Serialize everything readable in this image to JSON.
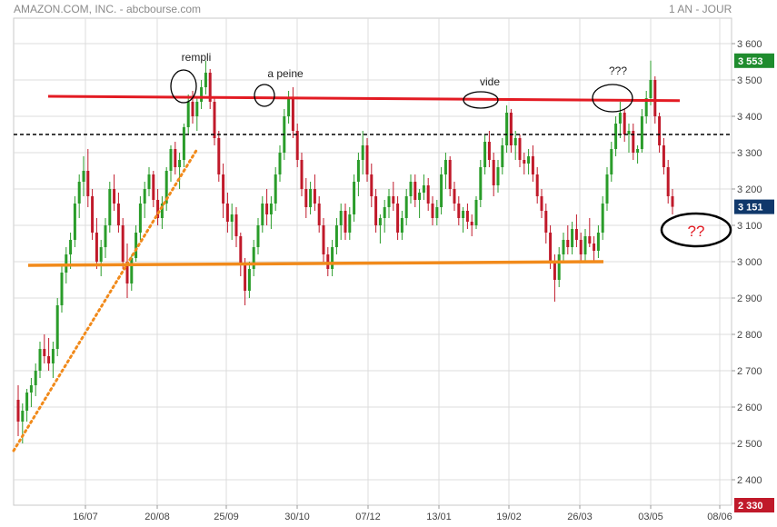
{
  "header": {
    "title": "AMAZON.COM, INC. - abcbourse.com",
    "period": "1 AN - JOUR"
  },
  "colors": {
    "up": "#2a9c2a",
    "down": "#c0192a",
    "resistance": "#e31b23",
    "support": "#f18a1b",
    "dashed": "#000000",
    "price_badge_green": "#1f8c2e",
    "price_badge_red": "#c0192a",
    "grid": "#dcdcdc"
  },
  "chart_data": {
    "type": "candlestick",
    "x_ticks": [
      "16/07",
      "20/08",
      "25/09",
      "30/10",
      "07/12",
      "13/01",
      "19/02",
      "26/03",
      "03/05",
      "08/06"
    ],
    "y_ticks": [
      2400,
      2500,
      2600,
      2700,
      2800,
      2900,
      3000,
      3100,
      3200,
      3300,
      3400,
      3500,
      3600
    ],
    "ylim": [
      2330,
      3670
    ],
    "grid": true,
    "price_badges": [
      {
        "label": "3 553",
        "value": 3553,
        "kind": "green"
      },
      {
        "label": "3 151",
        "value": 3151,
        "kind": "blue"
      },
      {
        "label": "2 330",
        "value": 2330,
        "kind": "red"
      }
    ],
    "lines": [
      {
        "name": "resistance",
        "style": "solid",
        "from": [
          "start",
          3455
        ],
        "to": [
          "end",
          3443
        ]
      },
      {
        "name": "mid",
        "style": "dashed",
        "from": [
          "start",
          3350
        ],
        "to": [
          "end",
          3350
        ]
      },
      {
        "name": "support",
        "style": "solid",
        "from": [
          "start",
          2990
        ],
        "to": [
          "end",
          3000
        ]
      },
      {
        "name": "trend",
        "style": "dotted",
        "from": [
          2480
        ],
        "to": [
          3310
        ]
      }
    ],
    "annotations": [
      "rempli",
      "a peine",
      "vide",
      "???",
      "??"
    ],
    "candles": [
      [
        2620,
        2660,
        2520,
        2560
      ],
      [
        2560,
        2610,
        2500,
        2590
      ],
      [
        2590,
        2650,
        2560,
        2640
      ],
      [
        2640,
        2680,
        2600,
        2660
      ],
      [
        2660,
        2720,
        2630,
        2700
      ],
      [
        2700,
        2780,
        2680,
        2760
      ],
      [
        2760,
        2800,
        2720,
        2740
      ],
      [
        2740,
        2790,
        2700,
        2720
      ],
      [
        2720,
        2780,
        2680,
        2760
      ],
      [
        2760,
        2900,
        2740,
        2880
      ],
      [
        2880,
        2990,
        2860,
        2970
      ],
      [
        2970,
        3040,
        2940,
        3020
      ],
      [
        3020,
        3080,
        2980,
        3060
      ],
      [
        3060,
        3180,
        3040,
        3160
      ],
      [
        3160,
        3240,
        3120,
        3220
      ],
      [
        3220,
        3290,
        3180,
        3250
      ],
      [
        3250,
        3310,
        3150,
        3180
      ],
      [
        3180,
        3200,
        3060,
        3080
      ],
      [
        3080,
        3120,
        2980,
        3000
      ],
      [
        3000,
        3060,
        2960,
        3040
      ],
      [
        3040,
        3120,
        3010,
        3100
      ],
      [
        3100,
        3220,
        3080,
        3200
      ],
      [
        3200,
        3240,
        3140,
        3160
      ],
      [
        3160,
        3190,
        3080,
        3100
      ],
      [
        3100,
        3120,
        2980,
        3000
      ],
      [
        3000,
        3050,
        2900,
        2940
      ],
      [
        2940,
        3020,
        2920,
        3010
      ],
      [
        3010,
        3100,
        3000,
        3080
      ],
      [
        3080,
        3180,
        3060,
        3160
      ],
      [
        3160,
        3220,
        3120,
        3200
      ],
      [
        3200,
        3260,
        3180,
        3240
      ],
      [
        3240,
        3250,
        3150,
        3170
      ],
      [
        3170,
        3200,
        3100,
        3120
      ],
      [
        3120,
        3180,
        3090,
        3160
      ],
      [
        3160,
        3260,
        3140,
        3250
      ],
      [
        3250,
        3320,
        3220,
        3310
      ],
      [
        3310,
        3330,
        3240,
        3260
      ],
      [
        3260,
        3300,
        3200,
        3280
      ],
      [
        3280,
        3380,
        3260,
        3370
      ],
      [
        3370,
        3460,
        3350,
        3440
      ],
      [
        3440,
        3470,
        3380,
        3400
      ],
      [
        3400,
        3450,
        3360,
        3440
      ],
      [
        3440,
        3500,
        3420,
        3480
      ],
      [
        3480,
        3553,
        3460,
        3520
      ],
      [
        3520,
        3530,
        3420,
        3440
      ],
      [
        3440,
        3450,
        3320,
        3340
      ],
      [
        3340,
        3360,
        3220,
        3240
      ],
      [
        3240,
        3270,
        3120,
        3160
      ],
      [
        3160,
        3190,
        3080,
        3110
      ],
      [
        3110,
        3160,
        3060,
        3130
      ],
      [
        3130,
        3150,
        3040,
        3070
      ],
      [
        3070,
        3080,
        2960,
        2990
      ],
      [
        2990,
        3010,
        2880,
        2920
      ],
      [
        2920,
        3000,
        2900,
        2980
      ],
      [
        2980,
        3060,
        2960,
        3040
      ],
      [
        3040,
        3120,
        3020,
        3100
      ],
      [
        3100,
        3180,
        3080,
        3160
      ],
      [
        3160,
        3200,
        3100,
        3130
      ],
      [
        3130,
        3180,
        3090,
        3160
      ],
      [
        3160,
        3260,
        3140,
        3240
      ],
      [
        3240,
        3320,
        3220,
        3300
      ],
      [
        3300,
        3420,
        3280,
        3400
      ],
      [
        3400,
        3470,
        3380,
        3450
      ],
      [
        3450,
        3480,
        3340,
        3360
      ],
      [
        3360,
        3380,
        3260,
        3280
      ],
      [
        3280,
        3300,
        3180,
        3200
      ],
      [
        3200,
        3230,
        3120,
        3150
      ],
      [
        3150,
        3220,
        3130,
        3200
      ],
      [
        3200,
        3240,
        3140,
        3160
      ],
      [
        3160,
        3180,
        3080,
        3100
      ],
      [
        3100,
        3120,
        3000,
        3020
      ],
      [
        3020,
        3040,
        2960,
        2980
      ],
      [
        2980,
        3060,
        2960,
        3040
      ],
      [
        3040,
        3120,
        3020,
        3100
      ],
      [
        3100,
        3160,
        3060,
        3140
      ],
      [
        3140,
        3160,
        3060,
        3080
      ],
      [
        3080,
        3150,
        3060,
        3130
      ],
      [
        3130,
        3240,
        3110,
        3220
      ],
      [
        3220,
        3300,
        3180,
        3280
      ],
      [
        3280,
        3360,
        3240,
        3320
      ],
      [
        3320,
        3340,
        3220,
        3240
      ],
      [
        3240,
        3270,
        3150,
        3180
      ],
      [
        3180,
        3200,
        3080,
        3100
      ],
      [
        3100,
        3130,
        3050,
        3120
      ],
      [
        3120,
        3170,
        3080,
        3150
      ],
      [
        3150,
        3200,
        3120,
        3180
      ],
      [
        3180,
        3220,
        3140,
        3160
      ],
      [
        3160,
        3180,
        3060,
        3080
      ],
      [
        3080,
        3140,
        3060,
        3120
      ],
      [
        3120,
        3200,
        3100,
        3180
      ],
      [
        3180,
        3240,
        3160,
        3220
      ],
      [
        3220,
        3240,
        3150,
        3170
      ],
      [
        3170,
        3200,
        3120,
        3190
      ],
      [
        3190,
        3240,
        3170,
        3210
      ],
      [
        3210,
        3230,
        3140,
        3160
      ],
      [
        3160,
        3180,
        3100,
        3120
      ],
      [
        3120,
        3170,
        3100,
        3150
      ],
      [
        3150,
        3260,
        3130,
        3240
      ],
      [
        3240,
        3300,
        3200,
        3280
      ],
      [
        3280,
        3290,
        3180,
        3200
      ],
      [
        3200,
        3220,
        3140,
        3160
      ],
      [
        3160,
        3180,
        3100,
        3120
      ],
      [
        3120,
        3150,
        3080,
        3140
      ],
      [
        3140,
        3160,
        3090,
        3110
      ],
      [
        3110,
        3130,
        3070,
        3100
      ],
      [
        3100,
        3180,
        3090,
        3170
      ],
      [
        3170,
        3280,
        3150,
        3260
      ],
      [
        3260,
        3350,
        3240,
        3330
      ],
      [
        3330,
        3360,
        3260,
        3280
      ],
      [
        3280,
        3300,
        3180,
        3210
      ],
      [
        3210,
        3280,
        3190,
        3260
      ],
      [
        3260,
        3340,
        3240,
        3320
      ],
      [
        3320,
        3430,
        3300,
        3410
      ],
      [
        3410,
        3420,
        3300,
        3320
      ],
      [
        3320,
        3360,
        3280,
        3340
      ],
      [
        3340,
        3350,
        3260,
        3280
      ],
      [
        3280,
        3300,
        3240,
        3270
      ],
      [
        3270,
        3310,
        3240,
        3290
      ],
      [
        3290,
        3320,
        3220,
        3240
      ],
      [
        3240,
        3260,
        3160,
        3180
      ],
      [
        3180,
        3200,
        3120,
        3140
      ],
      [
        3140,
        3160,
        3050,
        3080
      ],
      [
        3080,
        3100,
        2980,
        3000
      ],
      [
        3000,
        3020,
        2890,
        2950
      ],
      [
        2950,
        3040,
        2930,
        3020
      ],
      [
        3020,
        3080,
        3000,
        3060
      ],
      [
        3060,
        3100,
        3020,
        3040
      ],
      [
        3040,
        3110,
        3020,
        3090
      ],
      [
        3090,
        3130,
        3040,
        3060
      ],
      [
        3060,
        3080,
        3000,
        3020
      ],
      [
        3020,
        3090,
        3000,
        3070
      ],
      [
        3070,
        3120,
        3040,
        3050
      ],
      [
        3050,
        3070,
        3000,
        3030
      ],
      [
        3030,
        3100,
        3010,
        3080
      ],
      [
        3080,
        3180,
        3060,
        3160
      ],
      [
        3160,
        3260,
        3140,
        3240
      ],
      [
        3240,
        3330,
        3220,
        3310
      ],
      [
        3310,
        3400,
        3290,
        3380
      ],
      [
        3380,
        3440,
        3340,
        3410
      ],
      [
        3410,
        3420,
        3330,
        3350
      ],
      [
        3350,
        3380,
        3300,
        3360
      ],
      [
        3360,
        3380,
        3280,
        3300
      ],
      [
        3300,
        3320,
        3270,
        3310
      ],
      [
        3310,
        3420,
        3300,
        3400
      ],
      [
        3400,
        3470,
        3380,
        3450
      ],
      [
        3450,
        3553,
        3430,
        3500
      ],
      [
        3500,
        3510,
        3380,
        3400
      ],
      [
        3400,
        3410,
        3300,
        3320
      ],
      [
        3320,
        3340,
        3240,
        3260
      ],
      [
        3260,
        3280,
        3160,
        3180
      ],
      [
        3180,
        3200,
        3130,
        3151
      ]
    ]
  }
}
